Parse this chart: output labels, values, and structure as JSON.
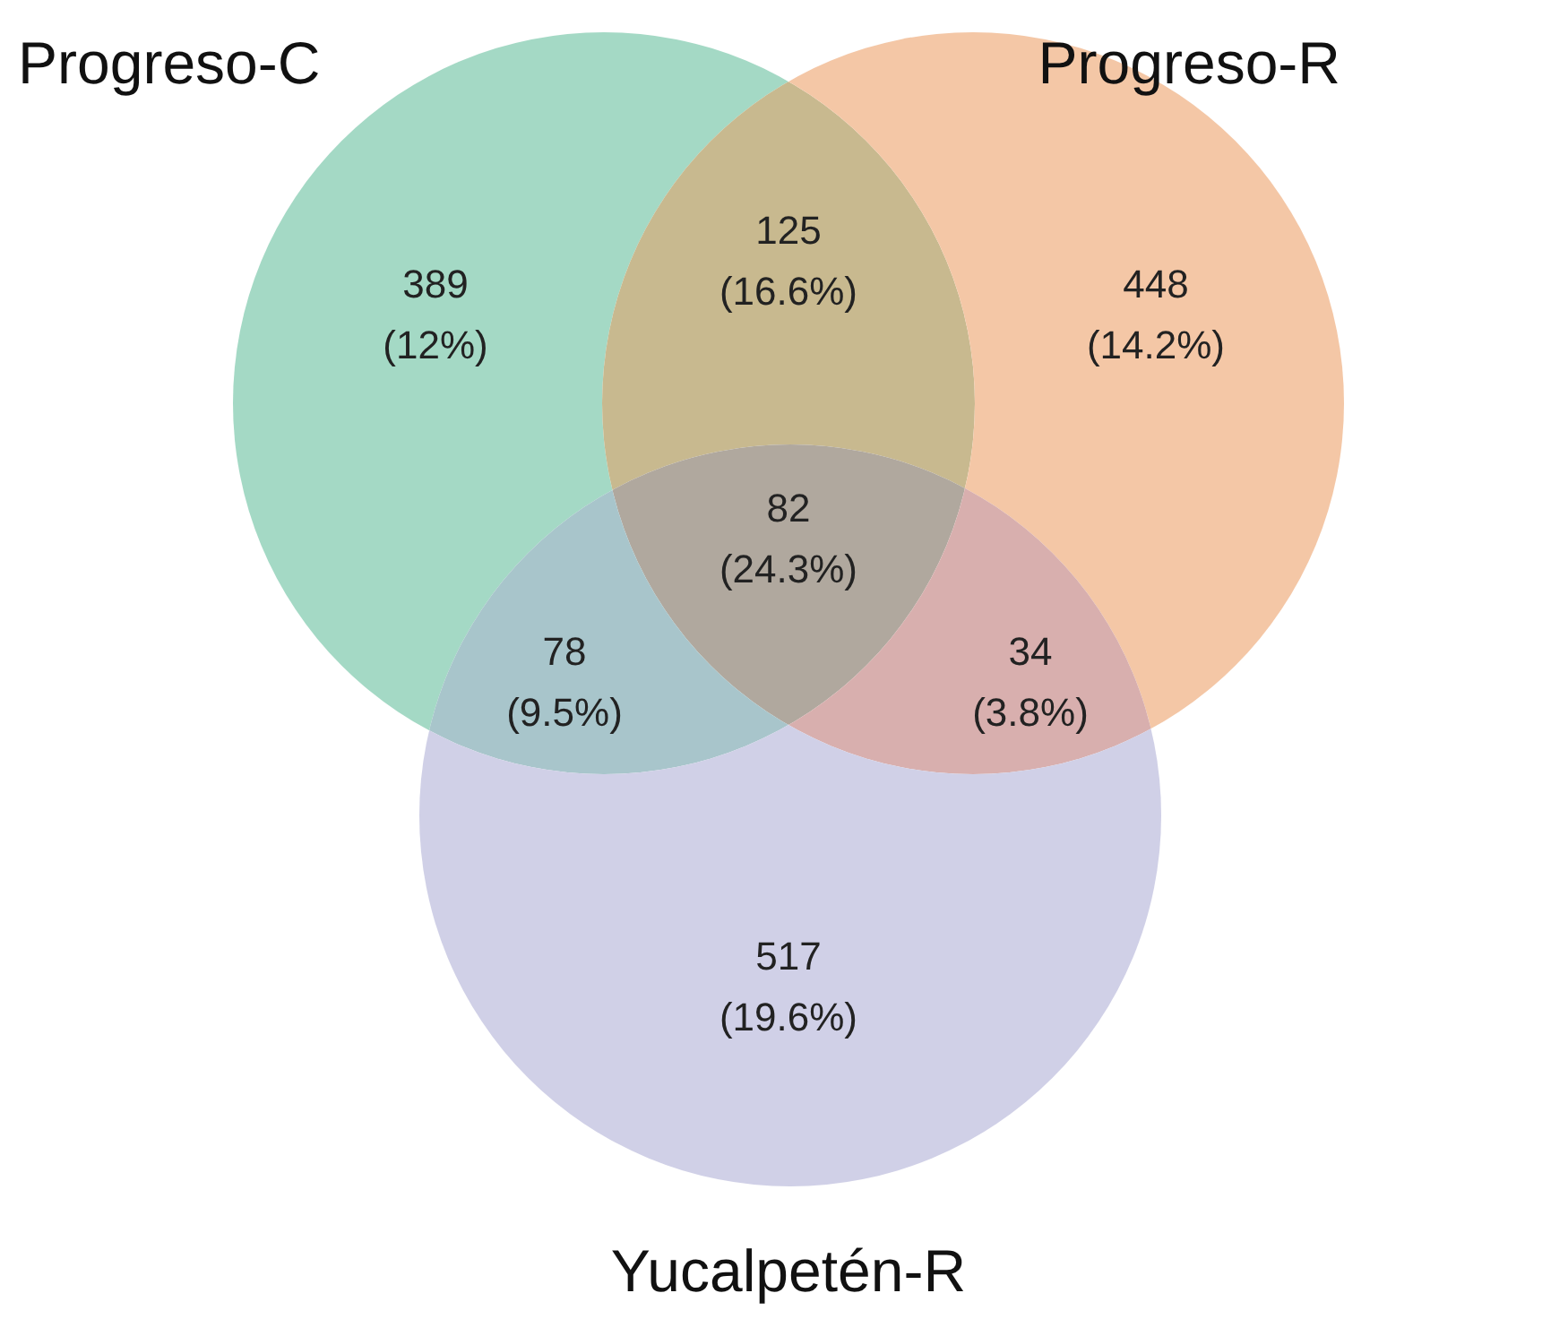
{
  "chart_data": {
    "type": "other",
    "categories": [
      null,
      null,
      null,
      null,
      null,
      null,
      null
    ],
    "values": [
      389,
      125,
      448,
      82,
      78,
      34,
      517
    ],
    "value_labels": [
      "389\n(12%)",
      "125\n(16.6%)",
      "448\n(14.2%)",
      "82\n(24.3%)",
      "78\n(9.5%)",
      "34\n(3.8%)",
      "517\n(19.6%)"
    ],
    "annotations": [
      "Progreso-C",
      "Progreso-R",
      "Yucalpetén-R"
    ],
    "colors": [
      "#a4d9c5",
      "#c8b98f",
      "#f4c7a6",
      "#b0a89e",
      "#a8c5cb",
      "#d8afae",
      "#d0d0e7"
    ]
  }
}
